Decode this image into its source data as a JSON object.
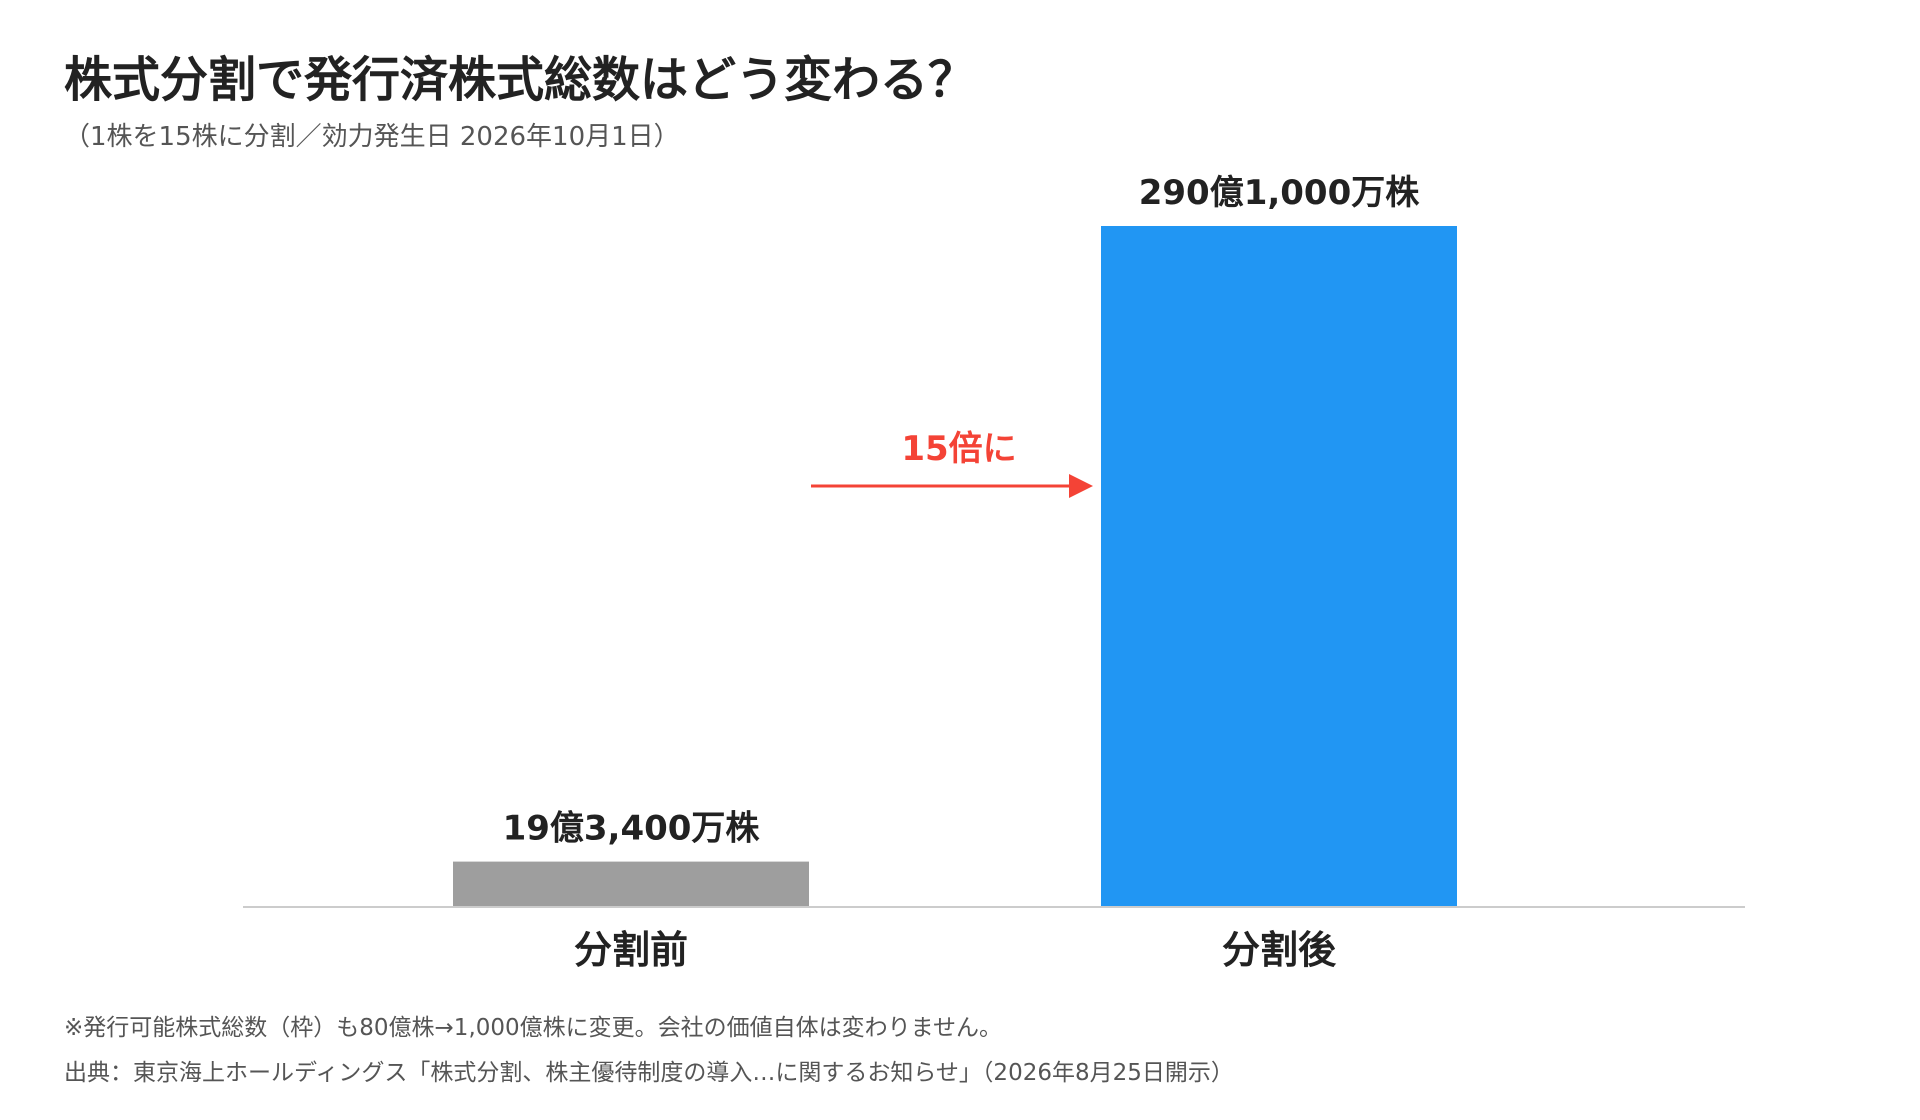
{
  "title": "株式分割で発行済株式総数はどう変わる？",
  "subtitle": "（1株を15株に分割／効力発生日 2026年10月1日）",
  "chart_data": {
    "type": "bar",
    "categories": [
      "分割前",
      "分割後"
    ],
    "values": [
      193400,
      2901000
    ],
    "data_labels": [
      "19億3,400万株",
      "290億1,000万株"
    ],
    "ylim": [
      0,
      2901000
    ],
    "grid": false,
    "colors": [
      "#9e9e9e",
      "#2196f3"
    ],
    "annotation": {
      "text": "15倍に",
      "color": "#f44336"
    }
  },
  "note": "※発行可能株式総数（枠）も80億株→1,000億株に変更。会社の価値自体は変わりません。",
  "source": "出典：東京海上ホールディングス「株式分割、株主優待制度の導入…に関するお知らせ」（2026年8月25日開示）"
}
